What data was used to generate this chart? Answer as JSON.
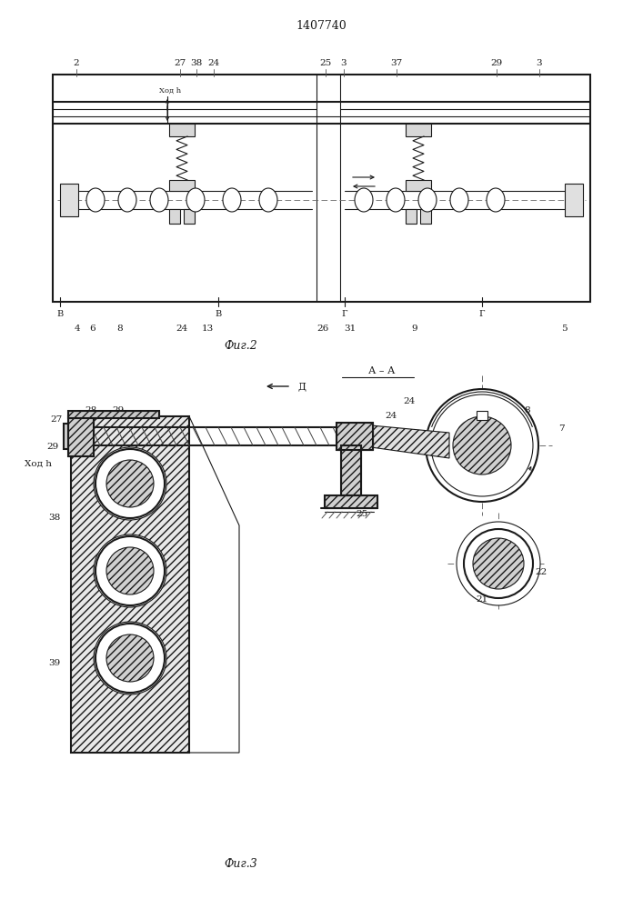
{
  "title": "1407740",
  "bg_color": "#ffffff",
  "line_color": "#1a1a1a",
  "fig2_label": "Фиг.2",
  "fig3_label": "Фиг.3"
}
